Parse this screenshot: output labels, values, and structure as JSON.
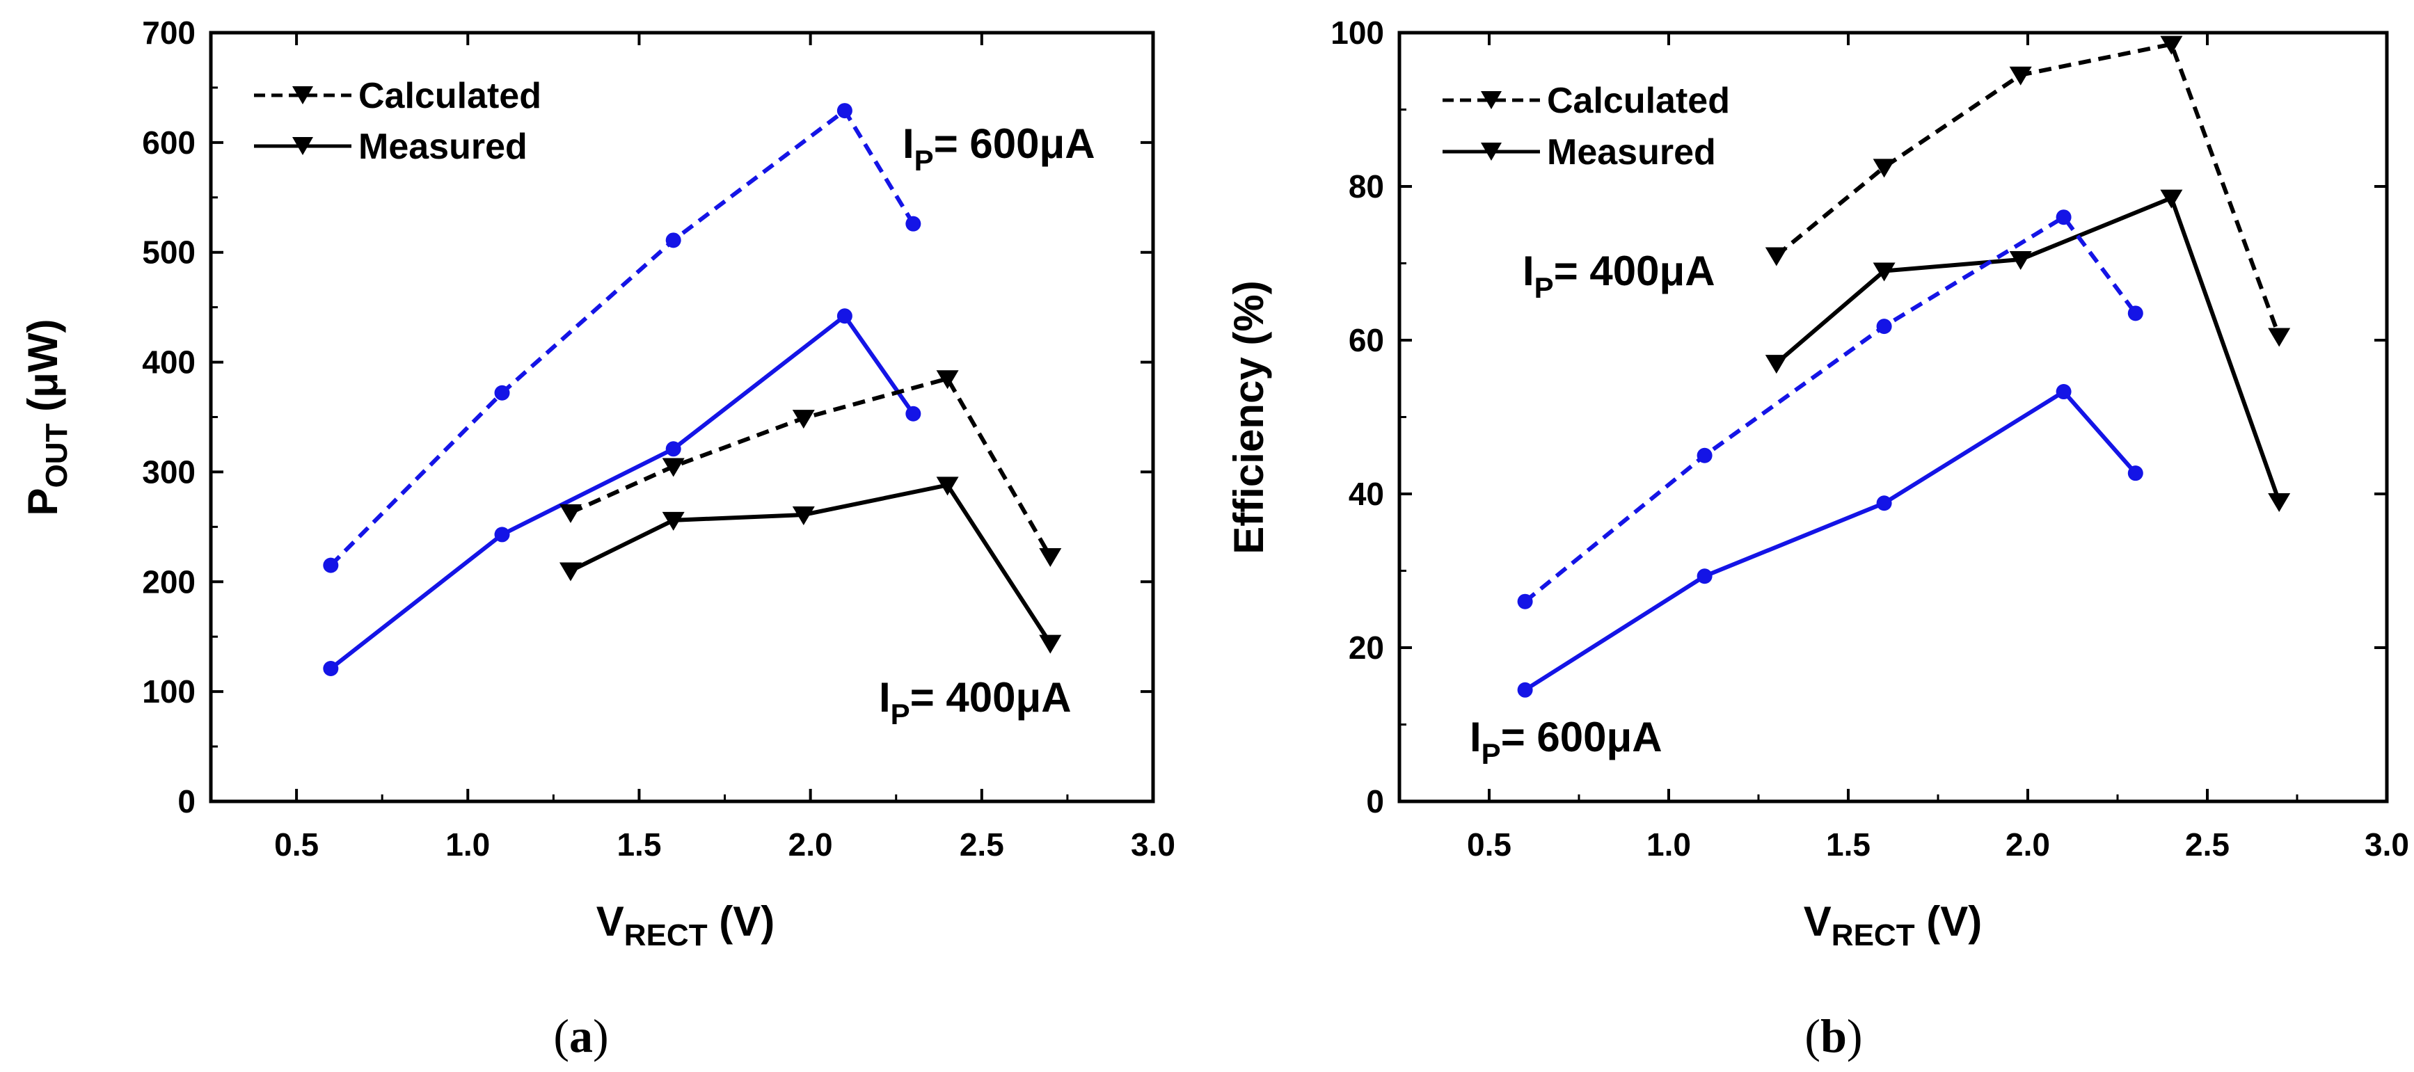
{
  "chart_data": [
    {
      "id": "a",
      "type": "line",
      "caption": {
        "open": "(",
        "letter": "a",
        "close": ")"
      },
      "xlabel": {
        "main": "V",
        "sub": "RECT",
        "unit": " (V)"
      },
      "ylabel": {
        "main": "P",
        "sub": "OUT",
        "unit": " (μW)"
      },
      "xlim": [
        0.25,
        3.0
      ],
      "ylim": [
        0,
        700
      ],
      "xticks": [
        0.5,
        1.0,
        1.5,
        2.0,
        2.5,
        3.0
      ],
      "xtick_labels": [
        "0.5",
        "1.0",
        "1.5",
        "2.0",
        "2.5",
        "3.0"
      ],
      "yticks": [
        0,
        100,
        200,
        300,
        400,
        500,
        600,
        700
      ],
      "ytick_labels": [
        "0",
        "100",
        "200",
        "300",
        "400",
        "500",
        "600",
        "700"
      ],
      "legend": {
        "position": "top-left",
        "entries": [
          {
            "label": "Calculated",
            "style": "dashed"
          },
          {
            "label": "Measured",
            "style": "solid"
          }
        ]
      },
      "annotations": [
        {
          "main": "I",
          "sub": "P",
          "rest": "= 600μA"
        },
        {
          "main": "I",
          "sub": "P",
          "rest": "= 400μA"
        }
      ],
      "series": [
        {
          "name": "Calculated, IP = 600μA",
          "color": "#1414e6",
          "dashed": true,
          "marker": "circle",
          "x": [
            0.6,
            1.1,
            1.6,
            2.1,
            2.3
          ],
          "y": [
            215,
            372,
            511,
            629,
            526
          ]
        },
        {
          "name": "Measured, IP = 600μA",
          "color": "#1414e6",
          "dashed": false,
          "marker": "circle",
          "x": [
            0.6,
            1.1,
            1.6,
            2.1,
            2.3
          ],
          "y": [
            121,
            243,
            321,
            442,
            353
          ]
        },
        {
          "name": "Calculated, IP = 400μA",
          "color": "#000000",
          "dashed": true,
          "marker": "triangle-down",
          "x": [
            1.3,
            1.6,
            1.98,
            2.4,
            2.7
          ],
          "y": [
            263,
            305,
            349,
            385,
            223
          ]
        },
        {
          "name": "Measured, IP = 400μA",
          "color": "#000000",
          "dashed": false,
          "marker": "triangle-down",
          "x": [
            1.3,
            1.6,
            1.98,
            2.4,
            2.7
          ],
          "y": [
            210,
            256,
            261,
            288,
            144
          ]
        }
      ]
    },
    {
      "id": "b",
      "type": "line",
      "caption": {
        "open": "(",
        "letter": "b",
        "close": ")"
      },
      "xlabel": {
        "main": "V",
        "sub": "RECT",
        "unit": " (V)"
      },
      "ylabel": {
        "main": "Efficiency (%)",
        "sub": "",
        "unit": ""
      },
      "xlim": [
        0.25,
        3.0
      ],
      "ylim": [
        0,
        100
      ],
      "xticks": [
        0.5,
        1.0,
        1.5,
        2.0,
        2.5,
        3.0
      ],
      "xtick_labels": [
        "0.5",
        "1.0",
        "1.5",
        "2.0",
        "2.5",
        "3.0"
      ],
      "yticks": [
        0,
        20,
        40,
        60,
        80,
        100
      ],
      "ytick_labels": [
        "0",
        "20",
        "40",
        "60",
        "80",
        "100"
      ],
      "legend": {
        "position": "top-left",
        "entries": [
          {
            "label": "Calculated",
            "style": "dashed"
          },
          {
            "label": "Measured",
            "style": "solid"
          }
        ]
      },
      "annotations": [
        {
          "main": "I",
          "sub": "P",
          "rest": "= 400μA"
        },
        {
          "main": "I",
          "sub": "P",
          "rest": "= 600μA"
        }
      ],
      "series": [
        {
          "name": "Calculated, IP = 400μA",
          "color": "#000000",
          "dashed": true,
          "marker": "triangle-down",
          "x": [
            1.3,
            1.6,
            1.98,
            2.4,
            2.7
          ],
          "y": [
            71,
            82.5,
            94.5,
            98.5,
            60.5
          ]
        },
        {
          "name": "Measured, IP = 400μA",
          "color": "#000000",
          "dashed": false,
          "marker": "triangle-down",
          "x": [
            1.3,
            1.6,
            1.98,
            2.4,
            2.7
          ],
          "y": [
            57,
            69,
            70.5,
            78.5,
            39
          ]
        },
        {
          "name": "Calculated, IP = 600μA",
          "color": "#1414e6",
          "dashed": true,
          "marker": "circle",
          "x": [
            0.6,
            1.1,
            1.6,
            2.1,
            2.3
          ],
          "y": [
            26,
            45,
            61.8,
            76,
            63.5
          ]
        },
        {
          "name": "Measured, IP = 600μA",
          "color": "#1414e6",
          "dashed": false,
          "marker": "circle",
          "x": [
            0.6,
            1.1,
            1.6,
            2.1,
            2.3
          ],
          "y": [
            14.5,
            29.3,
            38.8,
            53.3,
            42.7
          ]
        }
      ]
    }
  ]
}
